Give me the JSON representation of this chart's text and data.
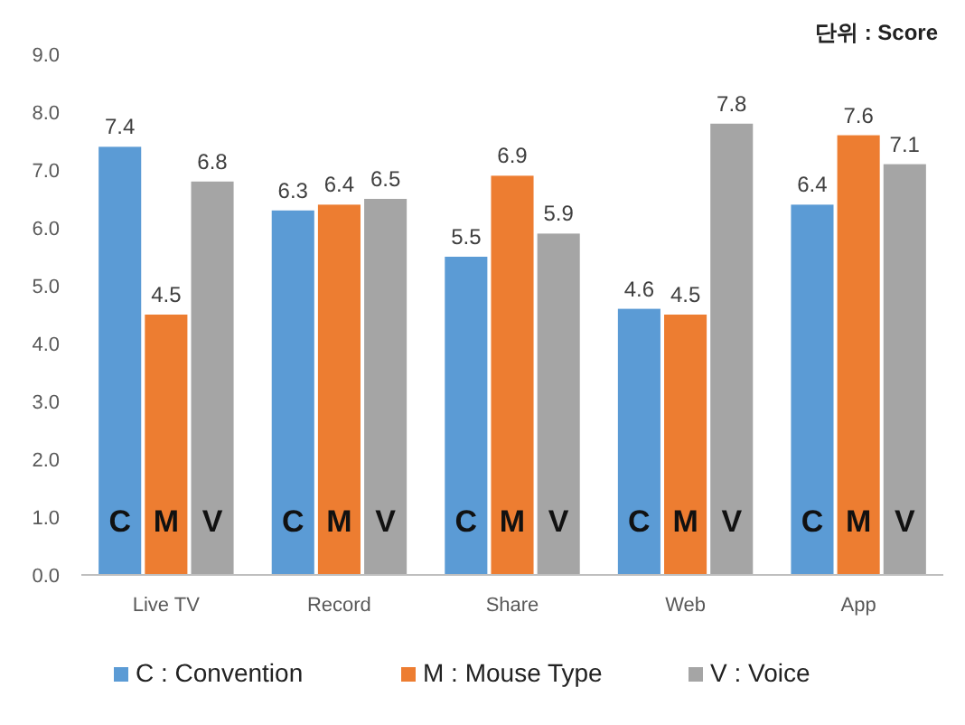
{
  "chart_data": {
    "type": "bar",
    "title": "단위 : Score",
    "categories": [
      "Live TV",
      "Record",
      "Share",
      "Web",
      "App"
    ],
    "series": [
      {
        "name": "C : Convention",
        "color": "#5b9bd5",
        "values": [
          7.4,
          6.3,
          5.5,
          4.6,
          6.4
        ]
      },
      {
        "name": "M : Mouse Type",
        "color": "#ed7d31",
        "values": [
          4.5,
          6.4,
          6.9,
          4.5,
          7.6
        ]
      },
      {
        "name": "V : Voice",
        "color": "#a5a5a5",
        "values": [
          6.8,
          6.5,
          5.9,
          7.8,
          7.1
        ]
      }
    ],
    "ylim": [
      0,
      9
    ],
    "yticks": [
      {
        "value": 0,
        "label": "0.0"
      },
      {
        "value": 1,
        "label": "1.0"
      },
      {
        "value": 2,
        "label": "2.0"
      },
      {
        "value": 3,
        "label": "3.0"
      },
      {
        "value": 4,
        "label": "4.0"
      },
      {
        "value": 5,
        "label": "5.0"
      },
      {
        "value": 6,
        "label": "6.0"
      },
      {
        "value": 7,
        "label": "7.0"
      },
      {
        "value": 8,
        "label": "8.0"
      },
      {
        "value": 9,
        "label": "9.0"
      }
    ],
    "data_labels": true,
    "legend": "bottom",
    "grid": false,
    "annotations": [
      "C",
      "M",
      "V",
      "C",
      "M",
      "V",
      "C",
      "M",
      "V",
      "C",
      "M",
      "V",
      "C",
      "M",
      "V"
    ]
  }
}
